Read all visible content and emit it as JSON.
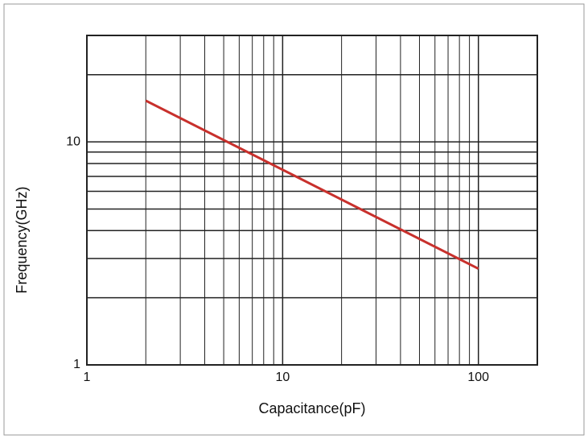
{
  "chart_data": {
    "type": "line",
    "x_label": "Capacitance(pF)",
    "y_label": "Frequency(GHz)",
    "x": [
      2,
      100
    ],
    "series": [
      {
        "name": "Frequency",
        "color": "#c8302c",
        "values": [
          15.3,
          2.7
        ]
      }
    ],
    "xlim": [
      1,
      200
    ],
    "ylim": [
      1,
      30
    ],
    "xticks": [
      1,
      10,
      100
    ],
    "yticks": [
      1,
      10
    ],
    "xscale": "log",
    "yscale": "log",
    "grid": true
  }
}
